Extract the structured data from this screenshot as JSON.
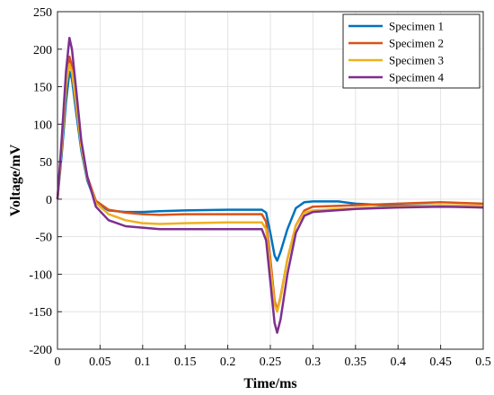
{
  "chart_data": {
    "type": "line",
    "xlabel": "Time/ms",
    "ylabel": "Voltage/mV",
    "xlim": [
      0,
      0.5
    ],
    "ylim": [
      -200,
      250
    ],
    "xticks": [
      "0",
      "0.05",
      "0.1",
      "0.15",
      "0.2",
      "0.25",
      "0.3",
      "0.35",
      "0.4",
      "0.45",
      "0.5"
    ],
    "yticks": [
      "-200",
      "-150",
      "-100",
      "-50",
      "0",
      "50",
      "100",
      "150",
      "200",
      "250"
    ],
    "grid": true,
    "legend_position": "top-right",
    "series": [
      {
        "name": "Specimen 1",
        "color": "#0072BD",
        "points": [
          [
            0,
            0
          ],
          [
            0.005,
            60
          ],
          [
            0.01,
            130
          ],
          [
            0.014,
            170
          ],
          [
            0.017,
            160
          ],
          [
            0.022,
            115
          ],
          [
            0.028,
            65
          ],
          [
            0.035,
            25
          ],
          [
            0.045,
            -5
          ],
          [
            0.06,
            -15
          ],
          [
            0.08,
            -17
          ],
          [
            0.1,
            -17
          ],
          [
            0.12,
            -16
          ],
          [
            0.15,
            -15
          ],
          [
            0.2,
            -14
          ],
          [
            0.24,
            -14
          ],
          [
            0.245,
            -18
          ],
          [
            0.25,
            -45
          ],
          [
            0.255,
            -75
          ],
          [
            0.258,
            -82
          ],
          [
            0.262,
            -70
          ],
          [
            0.27,
            -40
          ],
          [
            0.28,
            -12
          ],
          [
            0.29,
            -4
          ],
          [
            0.3,
            -3
          ],
          [
            0.33,
            -3
          ],
          [
            0.35,
            -6
          ],
          [
            0.4,
            -9
          ],
          [
            0.45,
            -8
          ],
          [
            0.5,
            -11
          ]
        ]
      },
      {
        "name": "Specimen 2",
        "color": "#D95319",
        "points": [
          [
            0,
            0
          ],
          [
            0.005,
            70
          ],
          [
            0.01,
            150
          ],
          [
            0.014,
            190
          ],
          [
            0.017,
            178
          ],
          [
            0.022,
            130
          ],
          [
            0.028,
            72
          ],
          [
            0.035,
            30
          ],
          [
            0.045,
            -2
          ],
          [
            0.06,
            -14
          ],
          [
            0.08,
            -18
          ],
          [
            0.1,
            -20
          ],
          [
            0.12,
            -21
          ],
          [
            0.15,
            -20
          ],
          [
            0.2,
            -20
          ],
          [
            0.24,
            -20
          ],
          [
            0.245,
            -30
          ],
          [
            0.25,
            -80
          ],
          [
            0.255,
            -135
          ],
          [
            0.258,
            -148
          ],
          [
            0.262,
            -130
          ],
          [
            0.27,
            -80
          ],
          [
            0.28,
            -35
          ],
          [
            0.29,
            -15
          ],
          [
            0.3,
            -10
          ],
          [
            0.35,
            -8
          ],
          [
            0.4,
            -6
          ],
          [
            0.45,
            -4
          ],
          [
            0.5,
            -6
          ]
        ]
      },
      {
        "name": "Specimen 3",
        "color": "#EDB120",
        "points": [
          [
            0,
            0
          ],
          [
            0.005,
            70
          ],
          [
            0.01,
            150
          ],
          [
            0.014,
            180
          ],
          [
            0.017,
            170
          ],
          [
            0.022,
            125
          ],
          [
            0.028,
            70
          ],
          [
            0.035,
            28
          ],
          [
            0.045,
            -5
          ],
          [
            0.06,
            -20
          ],
          [
            0.08,
            -28
          ],
          [
            0.1,
            -32
          ],
          [
            0.12,
            -33
          ],
          [
            0.15,
            -32
          ],
          [
            0.2,
            -31
          ],
          [
            0.24,
            -31
          ],
          [
            0.245,
            -40
          ],
          [
            0.25,
            -90
          ],
          [
            0.255,
            -140
          ],
          [
            0.258,
            -150
          ],
          [
            0.262,
            -132
          ],
          [
            0.27,
            -80
          ],
          [
            0.28,
            -35
          ],
          [
            0.29,
            -18
          ],
          [
            0.3,
            -15
          ],
          [
            0.35,
            -12
          ],
          [
            0.4,
            -10
          ],
          [
            0.45,
            -8
          ],
          [
            0.5,
            -9
          ]
        ]
      },
      {
        "name": "Specimen 4",
        "color": "#7E2F8E",
        "points": [
          [
            0,
            0
          ],
          [
            0.005,
            80
          ],
          [
            0.01,
            170
          ],
          [
            0.014,
            215
          ],
          [
            0.017,
            200
          ],
          [
            0.022,
            145
          ],
          [
            0.028,
            78
          ],
          [
            0.035,
            30
          ],
          [
            0.045,
            -10
          ],
          [
            0.06,
            -28
          ],
          [
            0.08,
            -36
          ],
          [
            0.1,
            -38
          ],
          [
            0.12,
            -40
          ],
          [
            0.15,
            -40
          ],
          [
            0.2,
            -40
          ],
          [
            0.24,
            -40
          ],
          [
            0.245,
            -55
          ],
          [
            0.25,
            -110
          ],
          [
            0.255,
            -165
          ],
          [
            0.258,
            -178
          ],
          [
            0.262,
            -160
          ],
          [
            0.27,
            -100
          ],
          [
            0.28,
            -45
          ],
          [
            0.29,
            -22
          ],
          [
            0.3,
            -17
          ],
          [
            0.35,
            -13
          ],
          [
            0.4,
            -11
          ],
          [
            0.45,
            -10
          ],
          [
            0.5,
            -11
          ]
        ]
      }
    ]
  }
}
